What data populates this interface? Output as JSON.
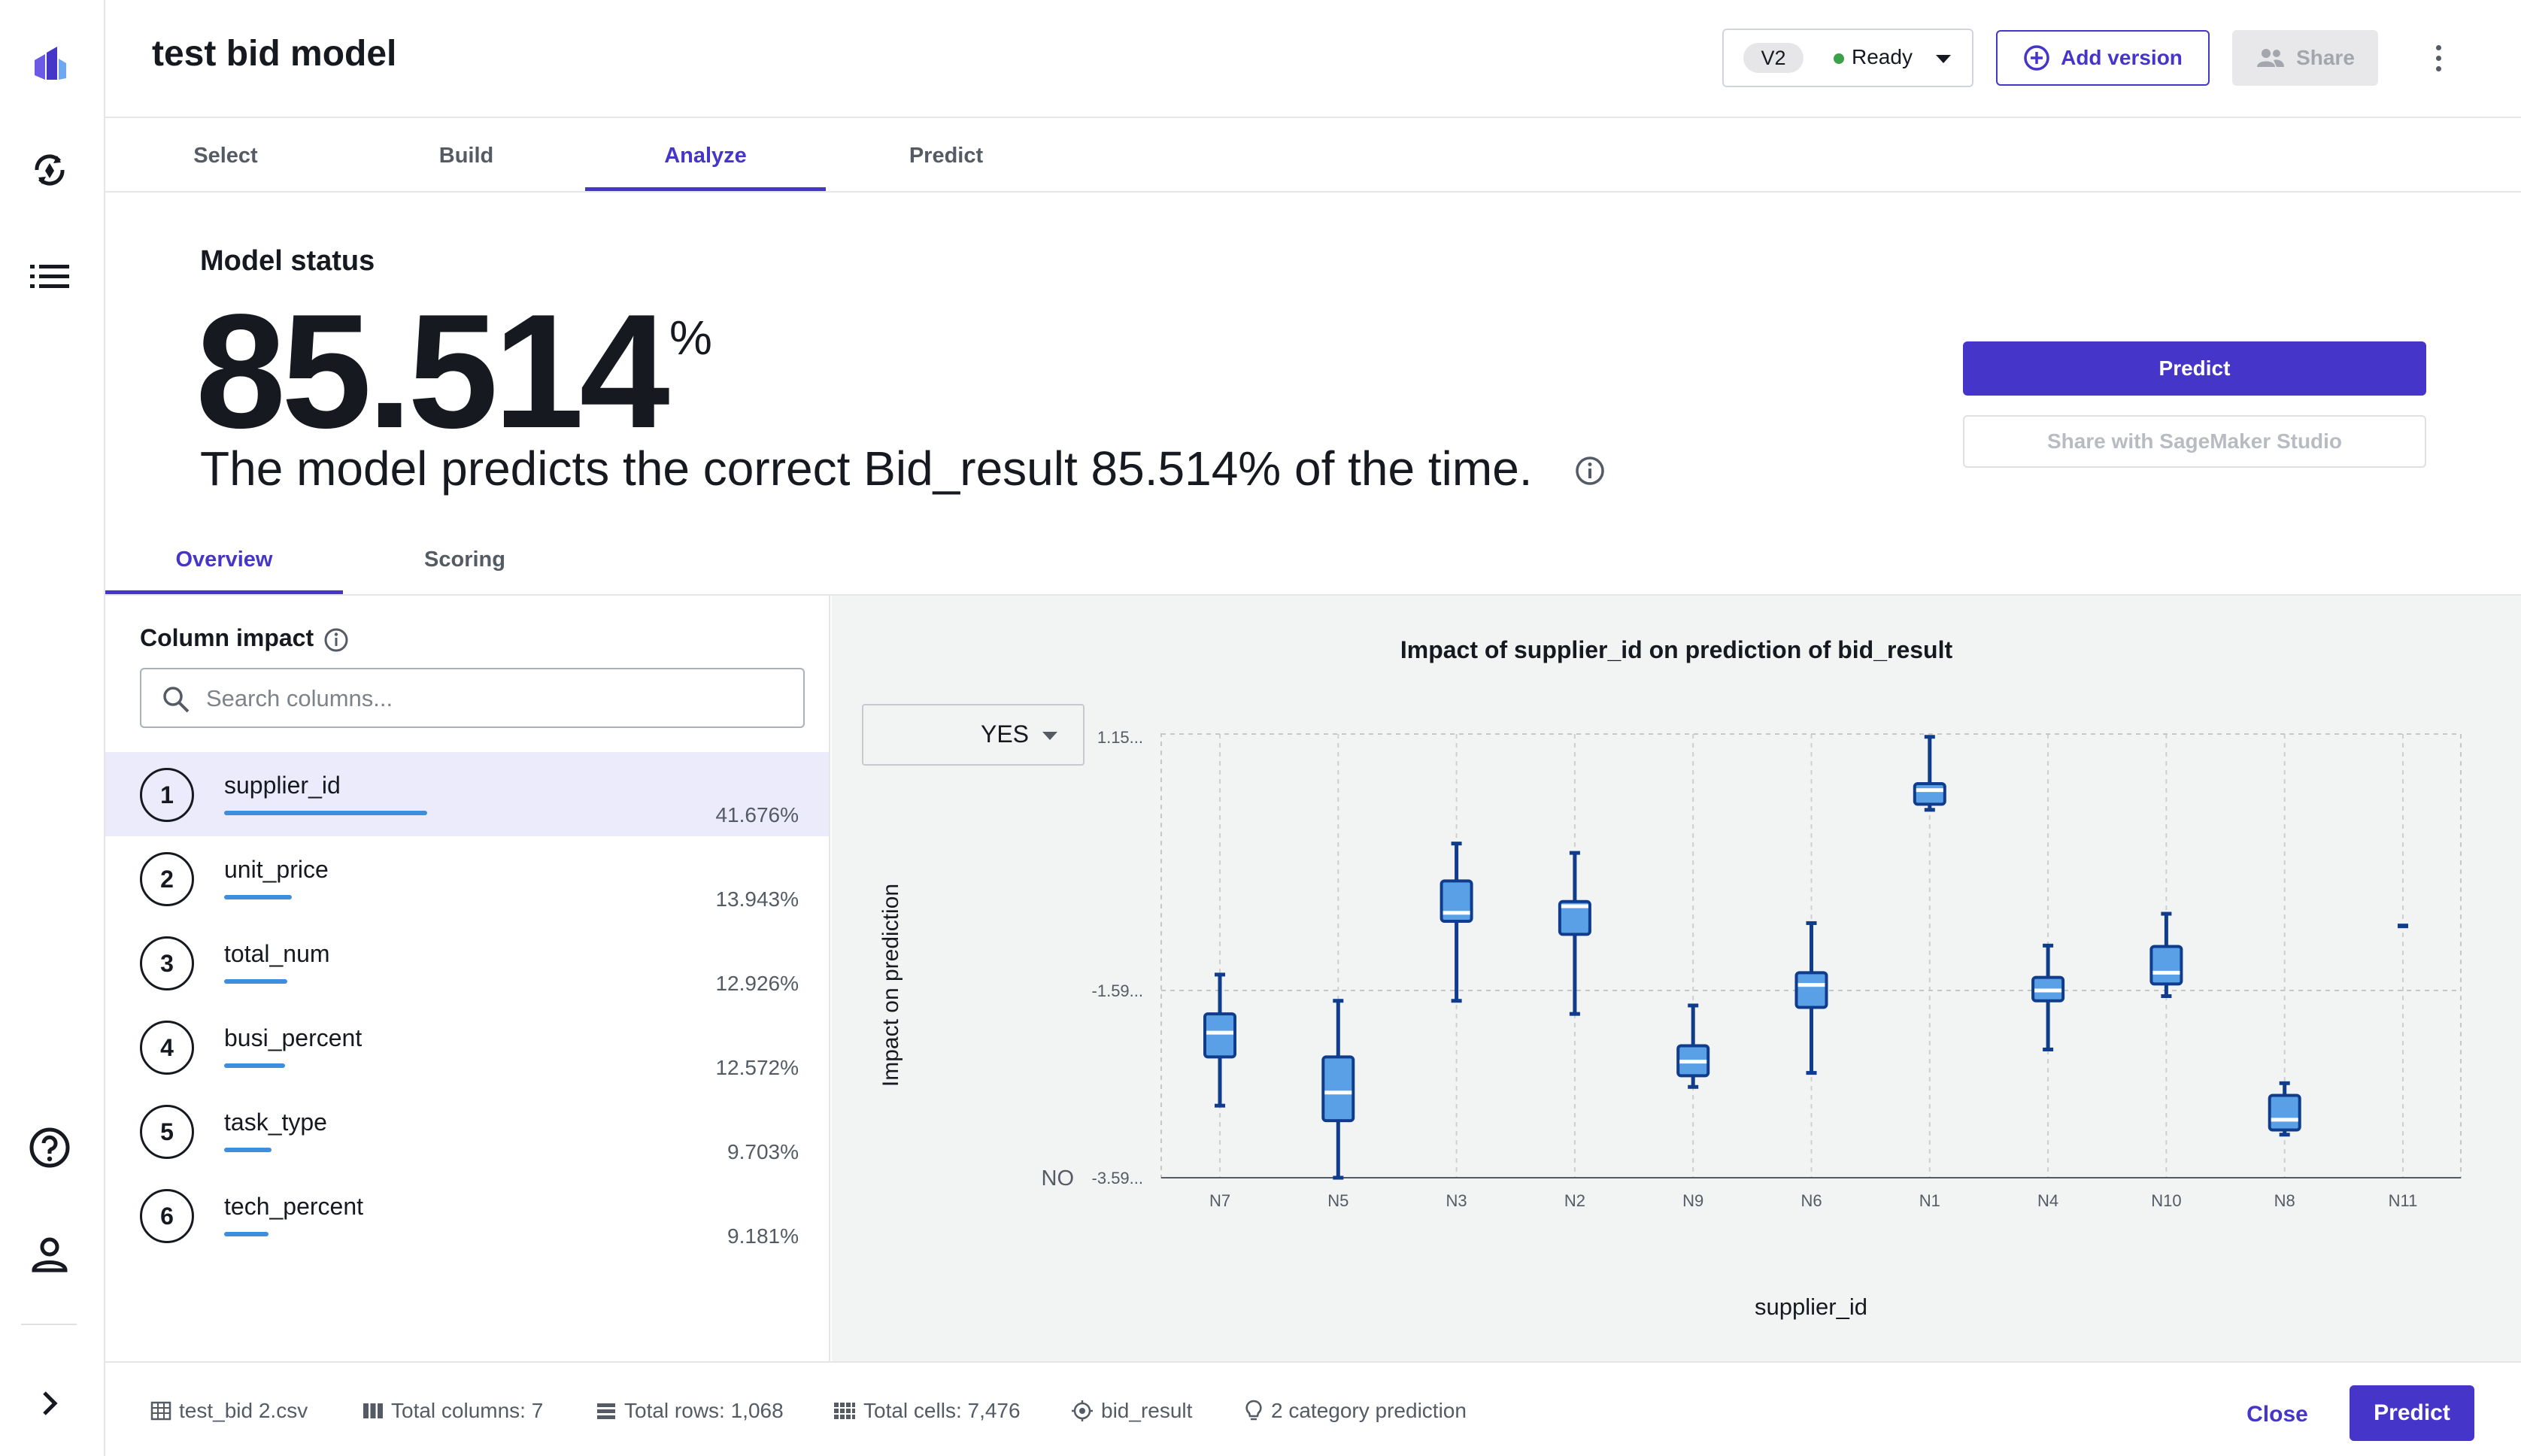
{
  "app": {
    "title": "test bid model"
  },
  "header": {
    "version_chip": "V2",
    "version_status": "Ready",
    "add_version_label": "Add version",
    "share_label": "Share"
  },
  "tabs": [
    {
      "label": "Select",
      "active": false
    },
    {
      "label": "Build",
      "active": false
    },
    {
      "label": "Analyze",
      "active": true
    },
    {
      "label": "Predict",
      "active": false
    }
  ],
  "model_status": {
    "label": "Model status",
    "value": "85.514",
    "unit": "%",
    "sentence": "The model predicts the correct Bid_result 85.514% of the time.",
    "predict_label": "Predict",
    "share_studio_label": "Share with SageMaker Studio"
  },
  "subtabs": [
    {
      "label": "Overview",
      "active": true
    },
    {
      "label": "Scoring",
      "active": false
    }
  ],
  "column_impact": {
    "title": "Column impact",
    "search_placeholder": "Search columns...",
    "items": [
      {
        "rank": "1",
        "name": "supplier_id",
        "percent": "41.676%",
        "value": 41.676,
        "selected": true
      },
      {
        "rank": "2",
        "name": "unit_price",
        "percent": "13.943%",
        "value": 13.943,
        "selected": false
      },
      {
        "rank": "3",
        "name": "total_num",
        "percent": "12.926%",
        "value": 12.926,
        "selected": false
      },
      {
        "rank": "4",
        "name": "busi_percent",
        "percent": "12.572%",
        "value": 12.572,
        "selected": false
      },
      {
        "rank": "5",
        "name": "task_type",
        "percent": "9.703%",
        "value": 9.703,
        "selected": false
      },
      {
        "rank": "6",
        "name": "tech_percent",
        "percent": "9.181%",
        "value": 9.181,
        "selected": false
      }
    ]
  },
  "chart_select": {
    "value": "YES",
    "bottom_label": "NO"
  },
  "chart_data": {
    "type": "box",
    "title": "Impact of supplier_id on prediction of bid_result",
    "xlabel": "supplier_id",
    "ylabel": "Impact on prediction",
    "y_tick_labels": [
      "1.15...",
      "-1.59...",
      "-3.59..."
    ],
    "y_ticks": [
      1.15,
      -1.59,
      -3.59
    ],
    "ylim": [
      -3.59,
      1.15
    ],
    "grid": true,
    "categories": [
      "N7",
      "N5",
      "N3",
      "N2",
      "N9",
      "N6",
      "N1",
      "N4",
      "N10",
      "N8",
      "N11"
    ],
    "boxes": [
      {
        "min": -2.82,
        "q1": -2.3,
        "median": -2.04,
        "q3": -1.84,
        "max": -1.42
      },
      {
        "min": -3.59,
        "q1": -2.98,
        "median": -2.68,
        "q3": -2.3,
        "max": -1.7
      },
      {
        "min": -1.7,
        "q1": -0.85,
        "median": -0.76,
        "q3": -0.42,
        "max": -0.02
      },
      {
        "min": -1.84,
        "q1": -0.99,
        "median": -0.69,
        "q3": -0.64,
        "max": -0.12
      },
      {
        "min": -2.62,
        "q1": -2.5,
        "median": -2.35,
        "q3": -2.18,
        "max": -1.75
      },
      {
        "min": -2.47,
        "q1": -1.77,
        "median": -1.53,
        "q3": -1.4,
        "max": -0.87
      },
      {
        "min": 0.34,
        "q1": 0.4,
        "median": 0.55,
        "q3": 0.62,
        "max": 1.12
      },
      {
        "min": -2.22,
        "q1": -1.7,
        "median": -1.59,
        "q3": -1.45,
        "max": -1.11
      },
      {
        "min": -1.65,
        "q1": -1.52,
        "median": -1.4,
        "q3": -1.12,
        "max": -0.77
      },
      {
        "min": -3.13,
        "q1": -3.08,
        "median": -2.97,
        "q3": -2.71,
        "max": -2.58
      },
      {
        "min": -0.9,
        "q1": -0.9,
        "median": -0.9,
        "q3": -0.9,
        "max": -0.9
      }
    ]
  },
  "footer": {
    "file": "test_bid 2.csv",
    "total_columns": "Total columns: 7",
    "total_rows": "Total rows: 1,068",
    "total_cells": "Total cells: 7,476",
    "target": "bid_result",
    "prediction_type": "2 category prediction",
    "close_label": "Close",
    "predict_label": "Predict"
  },
  "colors": {
    "accent": "#4535c9",
    "box_fill": "#5aa0e6",
    "box_stroke": "#0f3c8c",
    "impact_bar": "#3e8ede"
  }
}
